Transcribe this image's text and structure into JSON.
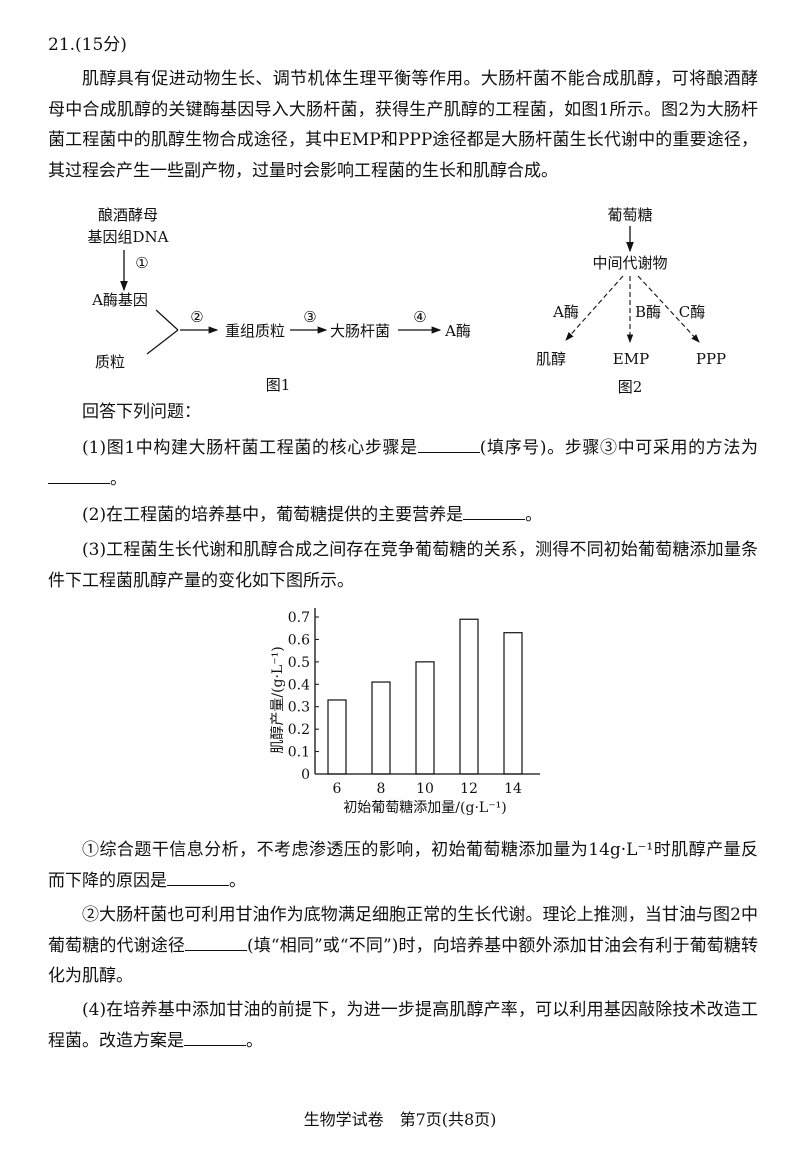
{
  "question": {
    "number": "21.(15分)",
    "intro": "肌醇具有促进动物生长、调节机体生理平衡等作用。大肠杆菌不能合成肌醇，可将酿酒酵母中合成肌醇的关键酶基因导入大肠杆菌，获得生产肌醇的工程菌，如图1所示。图2为大肠杆菌工程菌中的肌醇生物合成途径，其中EMP和PPP途径都是大肠杆菌生长代谢中的重要途径，其过程会产生一些副产物，过量时会影响工程菌的生长和肌醇合成。"
  },
  "figure1": {
    "source_line1": "酿酒酵母",
    "source_line2": "基因组DNA",
    "step1": "①",
    "gene": "A酶基因",
    "plasmid": "质粒",
    "step2": "②",
    "recombinant": "重组质粒",
    "step3": "③",
    "ecoli": "大肠杆菌",
    "step4": "④",
    "enzyme": "A酶",
    "caption": "图1"
  },
  "figure2": {
    "glucose": "葡萄糖",
    "intermediate": "中间代谢物",
    "enzyme_a": "A酶",
    "enzyme_b": "B酶",
    "enzyme_c": "C酶",
    "product_a": "肌醇",
    "product_b": "EMP",
    "product_c": "PPP",
    "caption": "图2"
  },
  "prompt": "回答下列问题：",
  "q1": {
    "a": "(1)图1中构建大肠杆菌工程菌的核心步骤是",
    "b": "(填序号)。步骤③中可采用的方法为",
    "c": "。"
  },
  "q2": {
    "a": "(2)在工程菌的培养基中，葡萄糖提供的主要营养是",
    "b": "。"
  },
  "q3": {
    "text": "(3)工程菌生长代谢和肌醇合成之间存在竞争葡萄糖的关系，测得不同初始葡萄糖添加量条件下工程菌肌醇产量的变化如下图所示。"
  },
  "chart_data": {
    "type": "bar",
    "categories": [
      "6",
      "8",
      "10",
      "12",
      "14"
    ],
    "values": [
      0.33,
      0.41,
      0.5,
      0.69,
      0.63
    ],
    "xlabel": "初始葡萄糖添加量/(g·L⁻¹)",
    "ylabel": "肌醇产量/(g·L⁻¹)",
    "yticks": [
      "0",
      "0.1",
      "0.2",
      "0.3",
      "0.4",
      "0.5",
      "0.6",
      "0.7"
    ],
    "ylim": [
      0,
      0.7
    ],
    "grid": false
  },
  "q3_1": {
    "a": "①综合题干信息分析，不考虑渗透压的影响，初始葡萄糖添加量为14g·L⁻¹时肌醇产量反而下降的原因是",
    "b": "。"
  },
  "q3_2": {
    "a": "②大肠杆菌也可利用甘油作为底物满足细胞正常的生长代谢。理论上推测，当甘油与图2中葡萄糖的代谢途径",
    "b": "(填“相同”或“不同”)时，向培养基中额外添加甘油会有利于葡萄糖转化为肌醇。"
  },
  "q4": {
    "a": "(4)在培养基中添加甘油的前提下，为进一步提高肌醇产率，可以利用基因敲除技术改造工程菌。改造方案是",
    "b": "。"
  },
  "footer": "生物学试卷　第7页(共8页)"
}
